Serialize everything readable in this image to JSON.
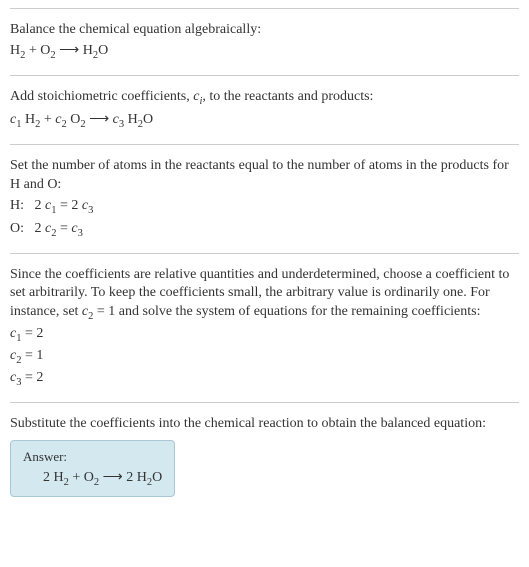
{
  "section1": {
    "text": "Balance the chemical equation algebraically:",
    "equation_html": "H<sub>2</sub> + O<sub>2</sub> ⟶ H<sub>2</sub>O"
  },
  "section2": {
    "text_html": "Add stoichiometric coefficients, <span class=\"italic\">c<sub>i</sub></span>, to the reactants and products:",
    "equation_html": "<span class=\"italic\">c</span><sub>1</sub> H<sub>2</sub> + <span class=\"italic\">c</span><sub>2</sub> O<sub>2</sub> ⟶ <span class=\"italic\">c</span><sub>3</sub> H<sub>2</sub>O"
  },
  "section3": {
    "text": "Set the number of atoms in the reactants equal to the number of atoms in the products for H and O:",
    "line1_html": "H:&nbsp;&nbsp;&nbsp;2 <span class=\"italic\">c</span><sub>1</sub> = 2 <span class=\"italic\">c</span><sub>3</sub>",
    "line2_html": "O:&nbsp;&nbsp;&nbsp;2 <span class=\"italic\">c</span><sub>2</sub> = <span class=\"italic\">c</span><sub>3</sub>"
  },
  "section4": {
    "text_html": "Since the coefficients are relative quantities and underdetermined, choose a coefficient to set arbitrarily. To keep the coefficients small, the arbitrary value is ordinarily one. For instance, set <span class=\"italic\">c</span><sub>2</sub> = 1 and solve the system of equations for the remaining coefficients:",
    "line1_html": "<span class=\"italic\">c</span><sub>1</sub> = 2",
    "line2_html": "<span class=\"italic\">c</span><sub>2</sub> = 1",
    "line3_html": "<span class=\"italic\">c</span><sub>3</sub> = 2"
  },
  "section5": {
    "text": "Substitute the coefficients into the chemical reaction to obtain the balanced equation:",
    "answer_label": "Answer:",
    "answer_html": "2 H<sub>2</sub> + O<sub>2</sub> ⟶ 2 H<sub>2</sub>O"
  },
  "colors": {
    "text": "#333333",
    "border": "#cccccc",
    "answer_bg": "#d4e8f0",
    "answer_border": "#a8c8d8",
    "background": "#ffffff"
  },
  "typography": {
    "font_family": "Georgia, Times New Roman, serif",
    "font_size": 14,
    "line_height": 1.35
  }
}
